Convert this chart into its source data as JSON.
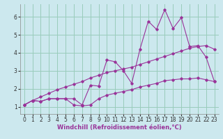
{
  "bg_color": "#cce8ee",
  "grid_color": "#99ccbb",
  "line_color": "#993399",
  "marker_color": "#993399",
  "xlabel": "Windchill (Refroidissement éolien,°C)",
  "xlabel_fontsize": 6,
  "tick_fontsize": 5.5,
  "ylabel_ticks": [
    1,
    2,
    3,
    4,
    5,
    6
  ],
  "xlim": [
    -0.5,
    23.5
  ],
  "ylim": [
    0.6,
    6.7
  ],
  "line1_x": [
    0,
    1,
    2,
    3,
    4,
    5,
    6,
    7,
    8,
    9,
    10,
    11,
    12,
    13,
    14,
    15,
    16,
    17,
    18,
    19,
    20,
    21,
    22,
    23
  ],
  "line1_y": [
    1.1,
    1.35,
    1.3,
    1.45,
    1.45,
    1.45,
    1.45,
    1.1,
    2.2,
    2.15,
    3.6,
    3.5,
    3.0,
    2.3,
    4.2,
    5.75,
    5.3,
    6.4,
    5.35,
    5.95,
    4.35,
    4.4,
    3.75,
    2.4
  ],
  "line2_x": [
    0,
    1,
    2,
    3,
    4,
    5,
    6,
    7,
    8,
    9,
    10,
    11,
    12,
    13,
    14,
    15,
    16,
    17,
    18,
    19,
    20,
    21,
    22,
    23
  ],
  "line2_y": [
    1.1,
    1.35,
    1.3,
    1.45,
    1.45,
    1.45,
    1.1,
    1.05,
    1.1,
    1.45,
    1.65,
    1.75,
    1.85,
    1.95,
    2.1,
    2.2,
    2.3,
    2.45,
    2.5,
    2.55,
    2.55,
    2.6,
    2.5,
    2.4
  ],
  "line3_x": [
    0,
    1,
    2,
    3,
    4,
    5,
    6,
    7,
    8,
    9,
    10,
    11,
    12,
    13,
    14,
    15,
    16,
    17,
    18,
    19,
    20,
    21,
    22,
    23
  ],
  "line3_y": [
    1.1,
    1.35,
    1.55,
    1.75,
    1.95,
    2.1,
    2.25,
    2.4,
    2.6,
    2.75,
    2.9,
    3.0,
    3.1,
    3.2,
    3.35,
    3.5,
    3.65,
    3.8,
    3.95,
    4.1,
    4.25,
    4.35,
    4.4,
    4.2
  ]
}
